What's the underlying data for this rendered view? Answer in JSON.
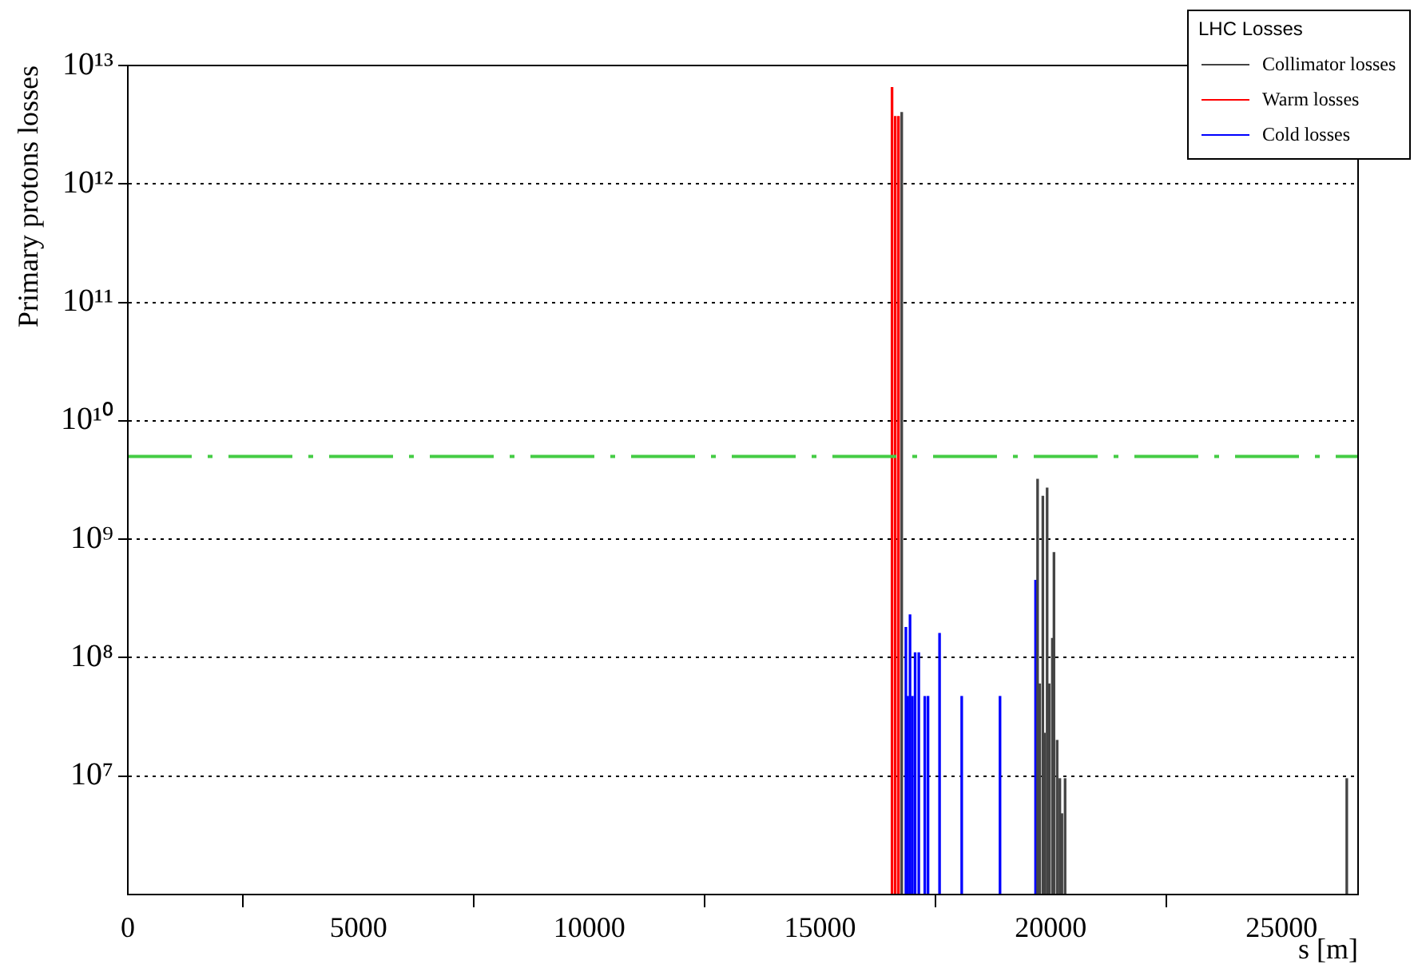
{
  "chart_data": {
    "type": "bar",
    "xlabel": "s [m]",
    "ylabel": "Primary protons losses",
    "legend_title": "LHC Losses",
    "legend": "top right",
    "grid": "y",
    "log": "y",
    "xlim": [
      0,
      26659
    ],
    "xticks": [
      0,
      5000,
      10000,
      15000,
      20000,
      25000
    ],
    "ylim": [
      1000000,
      10000000000000
    ],
    "yticks": [
      {
        "value": 10000000,
        "label": "10⁷"
      },
      {
        "value": 100000000,
        "label": "10⁸"
      },
      {
        "value": 1000000000,
        "label": "10⁹"
      },
      {
        "value": 10000000000,
        "label": "10¹⁰"
      },
      {
        "value": 100000000000,
        "label": "10¹¹"
      },
      {
        "value": 1000000000000,
        "label": "10¹²"
      },
      {
        "value": 10000000000000,
        "label": "10¹³"
      }
    ],
    "ref_lines": [
      {
        "axis": "y",
        "value": 5000000000,
        "color": "#44cc44",
        "line_style": "dashed"
      }
    ],
    "series": [
      {
        "name": "Collimator losses",
        "color": "#444444",
        "x": [
          16770,
          19714,
          19759,
          19828,
          19862,
          19921,
          19966,
          20034,
          20069,
          20138,
          20197,
          20241,
          20310,
          26414
        ],
        "values": [
          4000000000000,
          3200000000,
          60000000,
          2300000000,
          23000000,
          2700000000,
          60000000,
          145000000,
          770000000,
          20000000,
          9500000,
          4800000,
          9500000,
          9500000
        ]
      },
      {
        "name": "Warm losses",
        "color": "#ff0000",
        "x": [
          16560,
          16630,
          16700
        ],
        "values": [
          6500000000000,
          3700000000000,
          3700000000000
        ]
      },
      {
        "name": "Cold losses",
        "color": "#0000ff",
        "x": [
          16860,
          16900,
          16950,
          17000,
          17060,
          17140,
          17270,
          17340,
          17590,
          18070,
          18900,
          19670
        ],
        "values": [
          180000000,
          47000000,
          230000000,
          47000000,
          110000000,
          110000000,
          47000000,
          47000000,
          160000000,
          47000000,
          47000000,
          450000000
        ]
      }
    ]
  }
}
